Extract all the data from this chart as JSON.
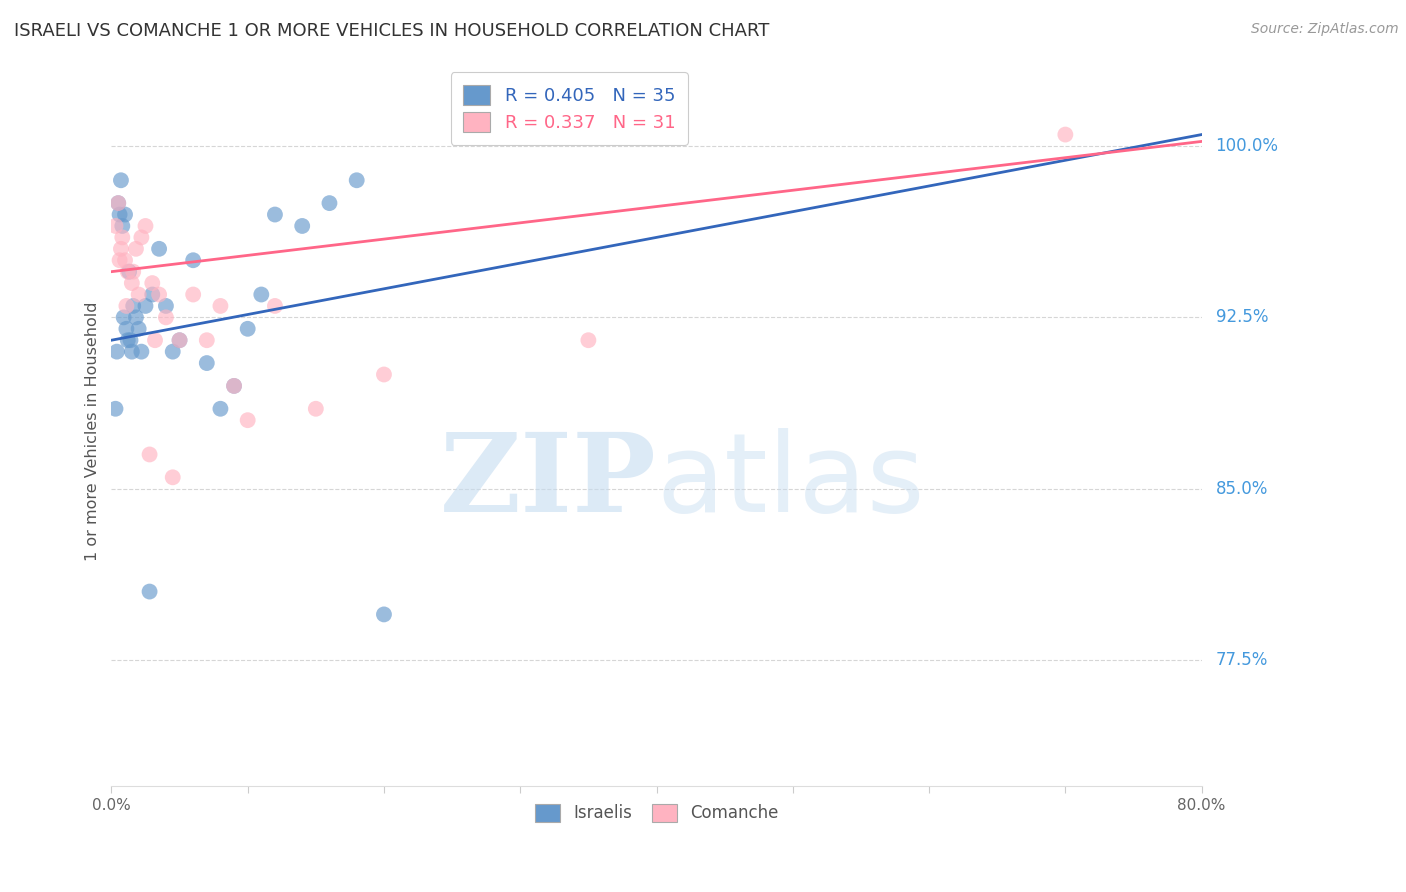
{
  "title": "ISRAELI VS COMANCHE 1 OR MORE VEHICLES IN HOUSEHOLD CORRELATION CHART",
  "source": "Source: ZipAtlas.com",
  "ylabel": "1 or more Vehicles in Household",
  "watermark_zip": "ZIP",
  "watermark_atlas": "atlas",
  "legend_top": [
    {
      "label": "R = 0.405   N = 35",
      "color": "#6699CC",
      "line_color": "#3366BB"
    },
    {
      "label": "R = 0.337   N = 31",
      "color": "#FFB3C1",
      "line_color": "#FF6688"
    }
  ],
  "legend_labels_bottom": [
    "Israelis",
    "Comanche"
  ],
  "ytick_labels": [
    "77.5%",
    "85.0%",
    "92.5%",
    "100.0%"
  ],
  "ytick_values": [
    77.5,
    85.0,
    92.5,
    100.0
  ],
  "xlim": [
    0.0,
    80.0
  ],
  "ylim": [
    72.0,
    103.0
  ],
  "israeli_points_x": [
    0.5,
    0.6,
    0.7,
    0.8,
    0.9,
    1.0,
    1.1,
    1.2,
    1.3,
    1.5,
    1.6,
    1.8,
    2.0,
    2.2,
    2.5,
    3.0,
    3.5,
    4.0,
    5.0,
    6.0,
    7.0,
    8.0,
    9.0,
    10.0,
    11.0,
    12.0,
    14.0,
    16.0,
    0.3,
    0.4,
    1.4,
    2.8,
    4.5,
    18.0,
    20.0
  ],
  "israeli_points_y": [
    97.5,
    97.0,
    98.5,
    96.5,
    92.5,
    97.0,
    92.0,
    91.5,
    94.5,
    91.0,
    93.0,
    92.5,
    92.0,
    91.0,
    93.0,
    93.5,
    95.5,
    93.0,
    91.5,
    95.0,
    90.5,
    88.5,
    89.5,
    92.0,
    93.5,
    97.0,
    96.5,
    97.5,
    88.5,
    91.0,
    91.5,
    80.5,
    91.0,
    98.5,
    79.5
  ],
  "comanche_points_x": [
    0.3,
    0.5,
    0.7,
    0.8,
    1.0,
    1.2,
    1.5,
    1.8,
    2.0,
    2.2,
    2.5,
    3.0,
    3.5,
    4.0,
    5.0,
    6.0,
    7.0,
    8.0,
    9.0,
    10.0,
    12.0,
    15.0,
    0.6,
    1.1,
    1.6,
    2.8,
    3.2,
    4.5,
    20.0,
    35.0,
    70.0
  ],
  "comanche_points_y": [
    96.5,
    97.5,
    95.5,
    96.0,
    95.0,
    94.5,
    94.0,
    95.5,
    93.5,
    96.0,
    96.5,
    94.0,
    93.5,
    92.5,
    91.5,
    93.5,
    91.5,
    93.0,
    89.5,
    88.0,
    93.0,
    88.5,
    95.0,
    93.0,
    94.5,
    86.5,
    91.5,
    85.5,
    90.0,
    91.5,
    100.5
  ],
  "israeli_color": "#6699CC",
  "comanche_color": "#FFB3C1",
  "israeli_line_color": "#3366BB",
  "comanche_line_color": "#FF6688",
  "background_color": "#FFFFFF",
  "grid_color": "#CCCCCC",
  "title_color": "#333333",
  "axis_label_color": "#555555",
  "ytick_color": "#4499DD",
  "source_color": "#999999"
}
